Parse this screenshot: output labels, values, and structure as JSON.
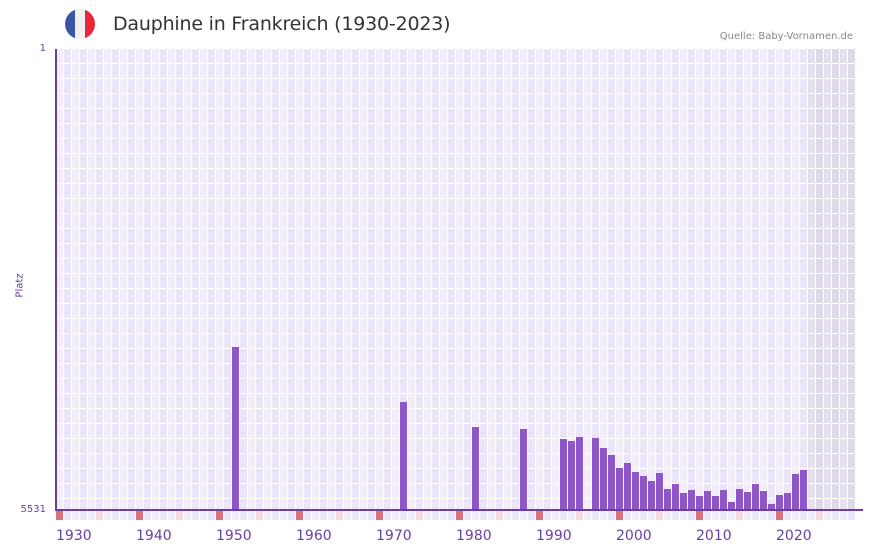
{
  "header": {
    "title": "Dauphine in Frankreich (1930-2023)",
    "source": "Quelle: Baby-Vornamen.de",
    "flag_icon": "france-flag-icon",
    "flag_colors": [
      "#3a56a6",
      "#f1f1f1",
      "#e8283a"
    ]
  },
  "axis": {
    "y_title": "Platz",
    "y_top_label": "1",
    "y_bottom_label": "5531",
    "x_labels": [
      "1930",
      "1940",
      "1950",
      "1960",
      "1970",
      "1980",
      "1990",
      "2000",
      "2010",
      "2020"
    ]
  },
  "colors": {
    "bar": "#8e56c6",
    "axis": "#6b3fa0",
    "grid_a": "#f1edfb",
    "grid_b": "#ebe6f7",
    "future_a": "#e4e0ee",
    "future_b": "#dedaea",
    "decade_tick": "#e07078",
    "half_decade_tick": "#f5d8e0",
    "minor_tick_a": "#f1edfb",
    "minor_tick_b": "#ebe6f7"
  },
  "chart_data": {
    "type": "bar",
    "title": "Dauphine in Frankreich (1930-2023)",
    "xlabel": "",
    "ylabel": "Platz",
    "ylim": [
      5531,
      1
    ],
    "y_inverted": true,
    "x_range": [
      1930,
      2029
    ],
    "future_shaded_from": 2024,
    "grid": true,
    "legend": null,
    "x": [
      1952,
      1973,
      1982,
      1988,
      1993,
      1994,
      1995,
      1997,
      1998,
      1999,
      2000,
      2001,
      2002,
      2003,
      2004,
      2005,
      2006,
      2007,
      2008,
      2009,
      2010,
      2011,
      2012,
      2013,
      2014,
      2015,
      2016,
      2017,
      2018,
      2019,
      2020,
      2021,
      2022,
      2023
    ],
    "values": [
      3577,
      4237,
      4537,
      4561,
      4681,
      4705,
      4657,
      4669,
      4789,
      4873,
      5029,
      4969,
      5077,
      5125,
      5185,
      5089,
      5281,
      5221,
      5329,
      5293,
      5365,
      5305,
      5365,
      5293,
      5437,
      5281,
      5317,
      5221,
      5305,
      5461,
      5353,
      5329,
      5101,
      5053
    ]
  }
}
